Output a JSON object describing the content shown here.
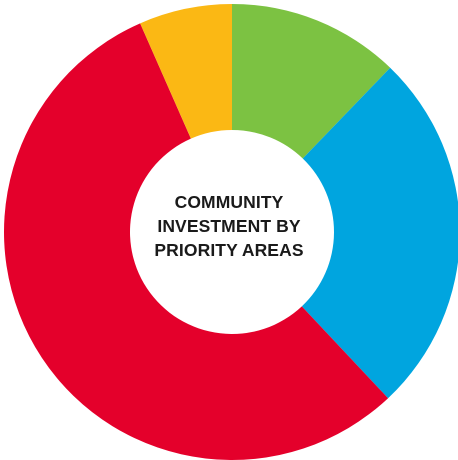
{
  "chart_data": {
    "type": "pie",
    "donut": true,
    "title_lines": [
      "COMMUNITY",
      "INVESTMENT BY",
      "PRIORITY AREAS"
    ],
    "slices": [
      {
        "value": 12.2,
        "color": "#7cc242"
      },
      {
        "value": 25.8,
        "color": "#00a5df"
      },
      {
        "value": 55.4,
        "color": "#e4002b"
      },
      {
        "value": 6.6,
        "color": "#fbb814"
      }
    ],
    "start_angle_deg": 0,
    "direction": "clockwise",
    "legend": "none"
  }
}
